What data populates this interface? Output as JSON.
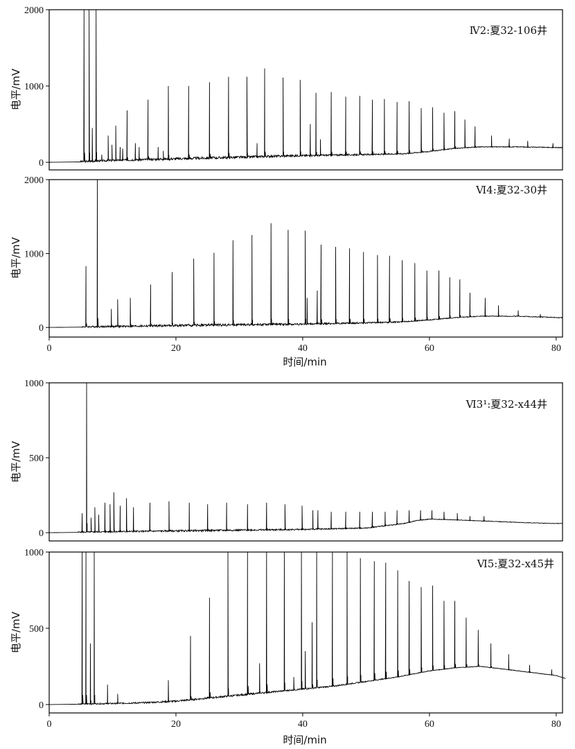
{
  "chart_data": [
    {
      "type": "line",
      "label": "Ⅳ2:夏32-106井",
      "ylabel": "电平/mV",
      "xlabel": "",
      "xlim": [
        0,
        81
      ],
      "ylim": [
        -100,
        2000
      ],
      "yticks": [
        "0",
        "1000",
        "2000"
      ],
      "xticks": [],
      "x_end": 81,
      "baseline": [
        [
          0,
          0
        ],
        [
          5,
          5
        ],
        [
          10,
          20
        ],
        [
          20,
          40
        ],
        [
          30,
          60
        ],
        [
          38,
          80
        ],
        [
          45,
          90
        ],
        [
          52,
          100
        ],
        [
          56,
          110
        ],
        [
          60,
          140
        ],
        [
          64,
          180
        ],
        [
          68,
          200
        ],
        [
          74,
          200
        ],
        [
          81,
          190
        ]
      ],
      "peaks": [
        [
          5.5,
          2000
        ],
        [
          6.3,
          2000
        ],
        [
          7.4,
          2000
        ],
        [
          6.8,
          450
        ],
        [
          8.3,
          100
        ],
        [
          9.3,
          350
        ],
        [
          9.9,
          230
        ],
        [
          10.5,
          480
        ],
        [
          11.2,
          200
        ],
        [
          11.6,
          180
        ],
        [
          12.3,
          680
        ],
        [
          13.6,
          250
        ],
        [
          14.2,
          200
        ],
        [
          15.6,
          820
        ],
        [
          17.2,
          200
        ],
        [
          18.0,
          150
        ],
        [
          18.8,
          1000
        ],
        [
          22.0,
          1000
        ],
        [
          25.3,
          1050
        ],
        [
          28.3,
          1120
        ],
        [
          31.2,
          1120
        ],
        [
          32.8,
          250
        ],
        [
          34.0,
          1230
        ],
        [
          36.9,
          1110
        ],
        [
          39.6,
          1080
        ],
        [
          41.2,
          500
        ],
        [
          42.1,
          910
        ],
        [
          42.8,
          300
        ],
        [
          44.5,
          920
        ],
        [
          46.8,
          860
        ],
        [
          49.0,
          870
        ],
        [
          51.0,
          820
        ],
        [
          52.9,
          830
        ],
        [
          54.9,
          790
        ],
        [
          56.8,
          800
        ],
        [
          58.7,
          710
        ],
        [
          60.5,
          720
        ],
        [
          62.3,
          650
        ],
        [
          64.0,
          670
        ],
        [
          65.6,
          560
        ],
        [
          67.2,
          470
        ],
        [
          69.8,
          350
        ],
        [
          72.6,
          310
        ],
        [
          75.5,
          280
        ],
        [
          79.5,
          250
        ]
      ]
    },
    {
      "type": "line",
      "label": "Ⅵ4:夏32-30井",
      "ylabel": "电平/mV",
      "xlabel": "时间/min",
      "xlim": [
        0,
        81
      ],
      "ylim": [
        -130,
        2000
      ],
      "yticks": [
        "0",
        "1000",
        "2000"
      ],
      "xticks": [
        "0",
        "20",
        "40",
        "60",
        "80"
      ],
      "x_end": 81,
      "baseline": [
        [
          0,
          0
        ],
        [
          6,
          5
        ],
        [
          12,
          10
        ],
        [
          20,
          20
        ],
        [
          30,
          30
        ],
        [
          40,
          40
        ],
        [
          48,
          55
        ],
        [
          55,
          70
        ],
        [
          60,
          100
        ],
        [
          64,
          130
        ],
        [
          68,
          150
        ],
        [
          74,
          150
        ],
        [
          81,
          130
        ]
      ],
      "peaks": [
        [
          5.8,
          830
        ],
        [
          7.6,
          2000
        ],
        [
          9.8,
          250
        ],
        [
          10.8,
          380
        ],
        [
          12.8,
          400
        ],
        [
          16.0,
          580
        ],
        [
          19.4,
          750
        ],
        [
          22.8,
          930
        ],
        [
          26.0,
          1010
        ],
        [
          29.0,
          1180
        ],
        [
          32.0,
          1250
        ],
        [
          35.0,
          1410
        ],
        [
          37.7,
          1320
        ],
        [
          40.4,
          1310
        ],
        [
          40.7,
          400
        ],
        [
          42.3,
          500
        ],
        [
          42.9,
          1120
        ],
        [
          45.2,
          1090
        ],
        [
          47.4,
          1070
        ],
        [
          49.6,
          1020
        ],
        [
          51.8,
          980
        ],
        [
          53.7,
          970
        ],
        [
          55.7,
          910
        ],
        [
          57.7,
          870
        ],
        [
          59.6,
          770
        ],
        [
          61.5,
          770
        ],
        [
          63.2,
          680
        ],
        [
          64.8,
          650
        ],
        [
          66.4,
          470
        ],
        [
          68.8,
          400
        ],
        [
          70.9,
          300
        ],
        [
          74.0,
          230
        ],
        [
          77.5,
          180
        ]
      ]
    },
    {
      "type": "line",
      "label": "Ⅵ3¹:夏32-x44井",
      "ylabel": "电平/mV",
      "xlabel": "",
      "xlim": [
        0,
        81
      ],
      "ylim": [
        -55,
        1000
      ],
      "yticks": [
        "0",
        "500",
        "1000"
      ],
      "xticks": [],
      "x_end": 81,
      "baseline": [
        [
          0,
          0
        ],
        [
          10,
          5
        ],
        [
          20,
          10
        ],
        [
          30,
          15
        ],
        [
          40,
          20
        ],
        [
          45,
          25
        ],
        [
          50,
          30
        ],
        [
          53,
          45
        ],
        [
          56,
          60
        ],
        [
          58,
          80
        ],
        [
          60,
          90
        ],
        [
          64,
          85
        ],
        [
          70,
          75
        ],
        [
          76,
          65
        ],
        [
          81,
          60
        ]
      ],
      "peaks": [
        [
          5.2,
          130
        ],
        [
          5.9,
          1000
        ],
        [
          6.6,
          100
        ],
        [
          7.2,
          170
        ],
        [
          7.8,
          120
        ],
        [
          8.8,
          200
        ],
        [
          9.6,
          190
        ],
        [
          10.2,
          270
        ],
        [
          11.2,
          180
        ],
        [
          12.2,
          230
        ],
        [
          13.3,
          170
        ],
        [
          15.9,
          200
        ],
        [
          18.9,
          210
        ],
        [
          22.1,
          200
        ],
        [
          25.0,
          190
        ],
        [
          28.0,
          200
        ],
        [
          31.3,
          190
        ],
        [
          34.3,
          200
        ],
        [
          37.2,
          190
        ],
        [
          39.9,
          180
        ],
        [
          41.6,
          150
        ],
        [
          42.4,
          150
        ],
        [
          44.5,
          140
        ],
        [
          46.8,
          140
        ],
        [
          49.0,
          140
        ],
        [
          51.0,
          140
        ],
        [
          53.0,
          140
        ],
        [
          54.9,
          150
        ],
        [
          56.8,
          150
        ],
        [
          58.6,
          150
        ],
        [
          60.4,
          150
        ],
        [
          62.3,
          140
        ],
        [
          64.4,
          130
        ],
        [
          66.4,
          110
        ],
        [
          68.6,
          110
        ]
      ]
    },
    {
      "type": "line",
      "label": "Ⅵ5:夏32-x45井",
      "ylabel": "电平/mV",
      "xlabel": "时间/min",
      "xlim": [
        0,
        81
      ],
      "ylim": [
        -55,
        1000
      ],
      "yticks": [
        "0",
        "500",
        "1000"
      ],
      "xticks": [
        "0",
        "20",
        "40",
        "60",
        "80"
      ],
      "x_end": 81.5,
      "baseline": [
        [
          0,
          0
        ],
        [
          10,
          5
        ],
        [
          15,
          10
        ],
        [
          20,
          20
        ],
        [
          25,
          40
        ],
        [
          30,
          60
        ],
        [
          35,
          80
        ],
        [
          40,
          100
        ],
        [
          45,
          120
        ],
        [
          50,
          150
        ],
        [
          55,
          180
        ],
        [
          60,
          220
        ],
        [
          64,
          240
        ],
        [
          68,
          250
        ],
        [
          72,
          230
        ],
        [
          76,
          210
        ],
        [
          80,
          190
        ],
        [
          81.5,
          170
        ]
      ],
      "peaks": [
        [
          5.2,
          1000
        ],
        [
          5.8,
          1000
        ],
        [
          6.5,
          400
        ],
        [
          7.1,
          1000
        ],
        [
          9.2,
          130
        ],
        [
          10.8,
          70
        ],
        [
          18.8,
          160
        ],
        [
          22.3,
          450
        ],
        [
          25.3,
          700
        ],
        [
          28.2,
          1000
        ],
        [
          31.3,
          1000
        ],
        [
          33.2,
          270
        ],
        [
          34.3,
          1000
        ],
        [
          37.1,
          1000
        ],
        [
          38.6,
          180
        ],
        [
          39.8,
          1000
        ],
        [
          40.4,
          350
        ],
        [
          41.5,
          540
        ],
        [
          42.2,
          1000
        ],
        [
          44.7,
          1000
        ],
        [
          47.0,
          1000
        ],
        [
          49.1,
          960
        ],
        [
          51.3,
          940
        ],
        [
          53.1,
          930
        ],
        [
          55.0,
          880
        ],
        [
          56.8,
          810
        ],
        [
          58.7,
          770
        ],
        [
          60.5,
          780
        ],
        [
          62.3,
          680
        ],
        [
          64.0,
          680
        ],
        [
          65.8,
          570
        ],
        [
          67.7,
          490
        ],
        [
          69.7,
          400
        ],
        [
          72.5,
          330
        ],
        [
          75.8,
          260
        ],
        [
          79.3,
          230
        ]
      ]
    }
  ]
}
